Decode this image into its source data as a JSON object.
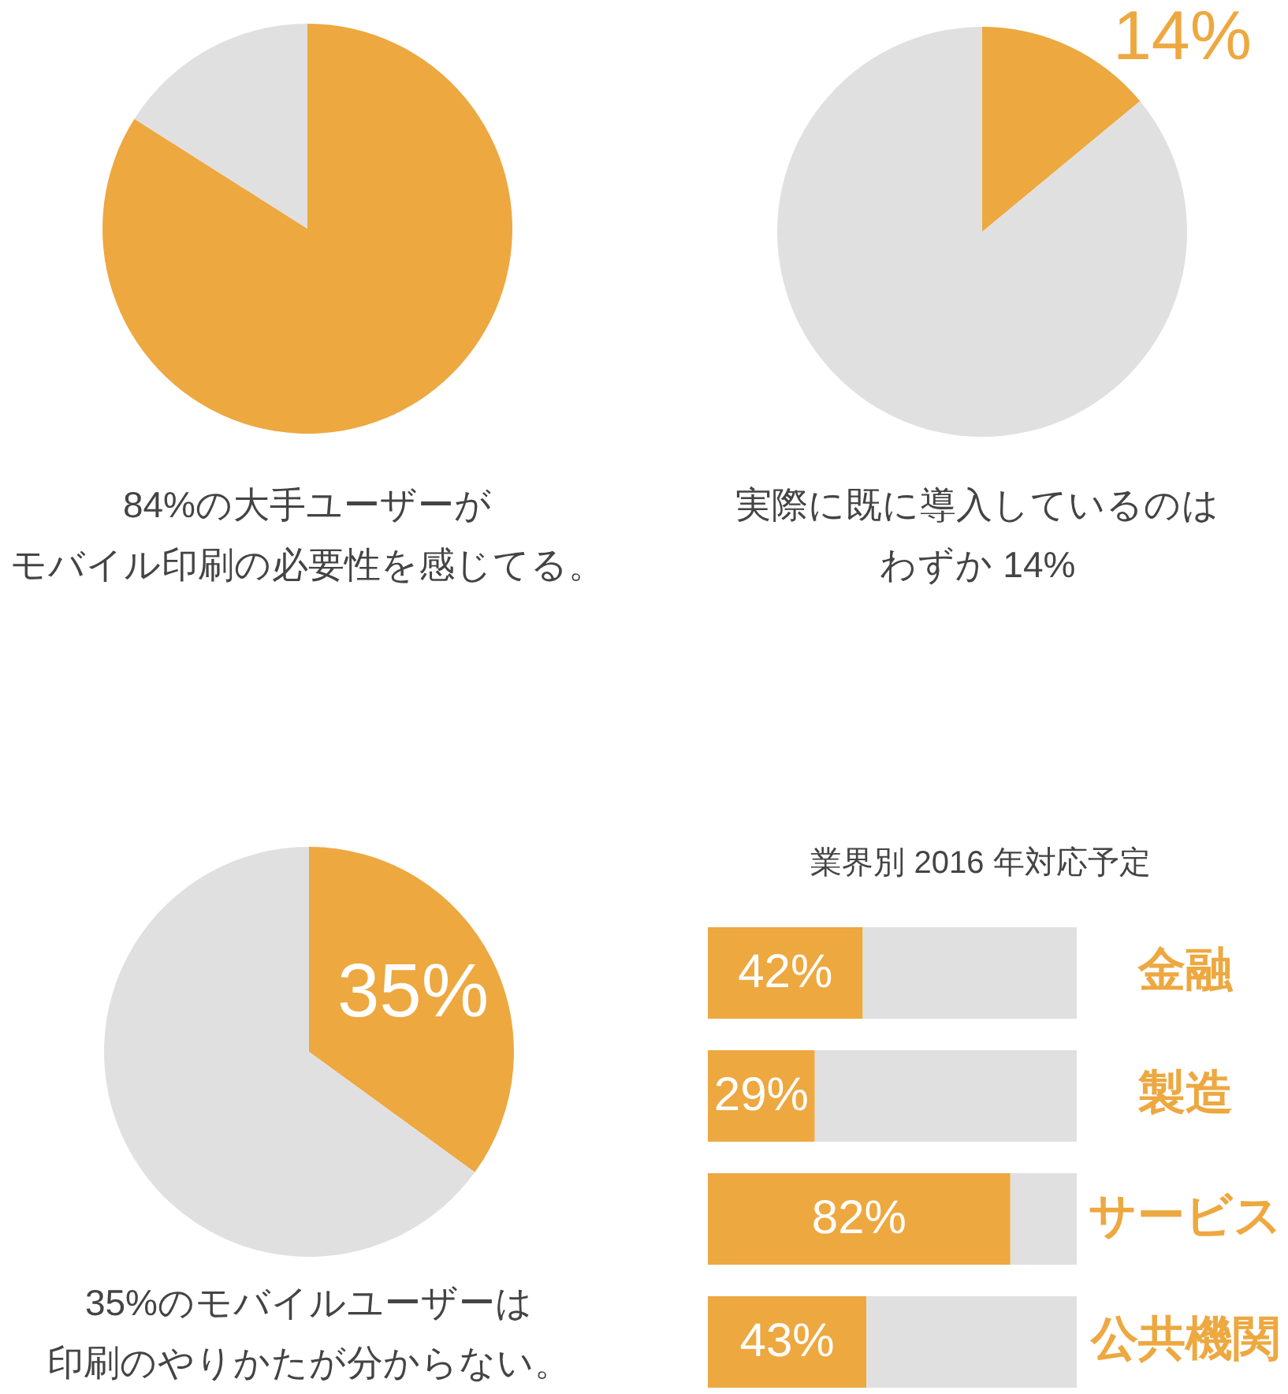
{
  "chart_data": [
    {
      "type": "pie",
      "categories": [
        null,
        null
      ],
      "values": [
        84,
        16
      ],
      "colors": [
        "#eda840",
        "#e0e0e0"
      ],
      "annotations": [
        "84%の大手ユーザーが",
        "モバイル印刷の必要性を感じてる。"
      ]
    },
    {
      "type": "pie",
      "categories": [
        null,
        null
      ],
      "values": [
        14,
        86
      ],
      "colors": [
        "#eda840",
        "#e0e0e0"
      ],
      "value_labels": [
        "14%",
        null
      ],
      "annotations": [
        "実際に既に導入しているのは",
        "わずか 14%"
      ]
    },
    {
      "type": "pie",
      "categories": [
        null,
        null
      ],
      "values": [
        35,
        65
      ],
      "colors": [
        "#eda840",
        "#e0e0e0"
      ],
      "value_labels": [
        "35%",
        null
      ],
      "annotations": [
        "35%のモバイルユーザーは",
        "印刷のやりかたが分からない。"
      ]
    },
    {
      "type": "bar",
      "orientation": "horizontal",
      "stacked": true,
      "xlim": [
        0,
        100
      ],
      "title": "業界別 2016 年対応予定",
      "categories": [
        "金融",
        "製造",
        "サービス",
        "公共機関"
      ],
      "series": [
        {
          "color": "#eda840",
          "values": [
            42,
            29,
            82,
            43
          ],
          "value_labels": [
            "42%",
            "29%",
            "82%",
            "43%"
          ]
        },
        {
          "color": "#e0e0e0",
          "values": [
            58,
            71,
            18,
            57
          ]
        }
      ]
    }
  ]
}
